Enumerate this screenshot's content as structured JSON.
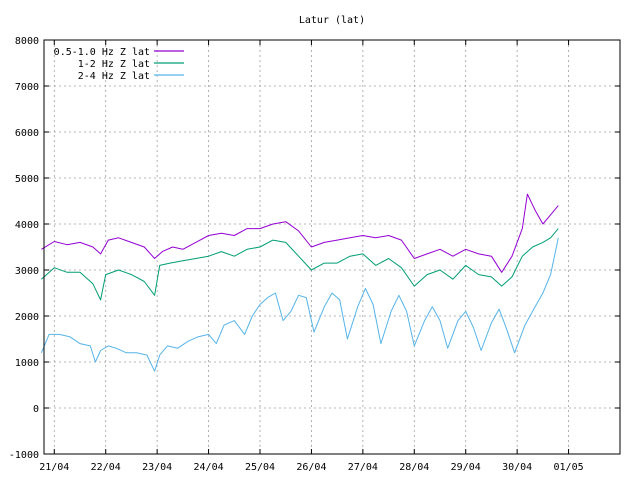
{
  "chart_data": {
    "type": "line",
    "title": "Latur (lat)",
    "xlabel": "",
    "ylabel": "",
    "ylim": [
      -1000,
      8000
    ],
    "xlim": [
      -0.2,
      11.0
    ],
    "yticks": [
      -1000,
      0,
      1000,
      2000,
      3000,
      4000,
      5000,
      6000,
      7000,
      8000
    ],
    "xticks": [
      {
        "pos": 0,
        "label": "21/04"
      },
      {
        "pos": 1,
        "label": "22/04"
      },
      {
        "pos": 2,
        "label": "23/04"
      },
      {
        "pos": 3,
        "label": "24/04"
      },
      {
        "pos": 4,
        "label": "25/04"
      },
      {
        "pos": 5,
        "label": "26/04"
      },
      {
        "pos": 6,
        "label": "27/04"
      },
      {
        "pos": 7,
        "label": "28/04"
      },
      {
        "pos": 8,
        "label": "29/04"
      },
      {
        "pos": 9,
        "label": "30/04"
      },
      {
        "pos": 10,
        "label": "01/05"
      }
    ],
    "grid": true,
    "legend_position": "top-left",
    "series": [
      {
        "name": "0.5-1.0 Hz Z lat",
        "color": "#9400d3",
        "points": [
          [
            -0.25,
            3450
          ],
          [
            0.0,
            3620
          ],
          [
            0.25,
            3550
          ],
          [
            0.5,
            3600
          ],
          [
            0.75,
            3500
          ],
          [
            0.9,
            3350
          ],
          [
            1.05,
            3650
          ],
          [
            1.25,
            3700
          ],
          [
            1.5,
            3600
          ],
          [
            1.75,
            3500
          ],
          [
            1.95,
            3250
          ],
          [
            2.1,
            3400
          ],
          [
            2.3,
            3500
          ],
          [
            2.5,
            3450
          ],
          [
            2.75,
            3600
          ],
          [
            3.0,
            3750
          ],
          [
            3.25,
            3800
          ],
          [
            3.5,
            3750
          ],
          [
            3.75,
            3900
          ],
          [
            4.0,
            3900
          ],
          [
            4.25,
            4000
          ],
          [
            4.5,
            4050
          ],
          [
            4.75,
            3850
          ],
          [
            5.0,
            3500
          ],
          [
            5.25,
            3600
          ],
          [
            5.5,
            3650
          ],
          [
            5.75,
            3700
          ],
          [
            6.0,
            3750
          ],
          [
            6.25,
            3700
          ],
          [
            6.5,
            3750
          ],
          [
            6.75,
            3650
          ],
          [
            7.0,
            3250
          ],
          [
            7.25,
            3350
          ],
          [
            7.5,
            3450
          ],
          [
            7.75,
            3300
          ],
          [
            8.0,
            3450
          ],
          [
            8.25,
            3350
          ],
          [
            8.5,
            3300
          ],
          [
            8.7,
            2950
          ],
          [
            8.9,
            3300
          ],
          [
            9.1,
            3900
          ],
          [
            9.2,
            4650
          ],
          [
            9.35,
            4300
          ],
          [
            9.5,
            4000
          ],
          [
            9.65,
            4200
          ],
          [
            9.8,
            4400
          ]
        ]
      },
      {
        "name": "1-2 Hz Z lat",
        "color": "#009e73",
        "points": [
          [
            -0.25,
            2800
          ],
          [
            0.0,
            3050
          ],
          [
            0.25,
            2950
          ],
          [
            0.5,
            2950
          ],
          [
            0.75,
            2700
          ],
          [
            0.9,
            2350
          ],
          [
            1.0,
            2900
          ],
          [
            1.25,
            3000
          ],
          [
            1.5,
            2900
          ],
          [
            1.75,
            2750
          ],
          [
            1.95,
            2450
          ],
          [
            2.05,
            3100
          ],
          [
            2.25,
            3150
          ],
          [
            2.5,
            3200
          ],
          [
            2.75,
            3250
          ],
          [
            3.0,
            3300
          ],
          [
            3.25,
            3400
          ],
          [
            3.5,
            3300
          ],
          [
            3.75,
            3450
          ],
          [
            4.0,
            3500
          ],
          [
            4.25,
            3650
          ],
          [
            4.5,
            3600
          ],
          [
            4.75,
            3300
          ],
          [
            5.0,
            3000
          ],
          [
            5.25,
            3150
          ],
          [
            5.5,
            3150
          ],
          [
            5.75,
            3300
          ],
          [
            6.0,
            3350
          ],
          [
            6.25,
            3100
          ],
          [
            6.5,
            3250
          ],
          [
            6.75,
            3050
          ],
          [
            7.0,
            2650
          ],
          [
            7.25,
            2900
          ],
          [
            7.5,
            3000
          ],
          [
            7.75,
            2800
          ],
          [
            8.0,
            3100
          ],
          [
            8.25,
            2900
          ],
          [
            8.5,
            2850
          ],
          [
            8.7,
            2650
          ],
          [
            8.9,
            2850
          ],
          [
            9.1,
            3300
          ],
          [
            9.3,
            3500
          ],
          [
            9.5,
            3600
          ],
          [
            9.65,
            3700
          ],
          [
            9.8,
            3900
          ]
        ]
      },
      {
        "name": "2-4 Hz Z lat",
        "color": "#56b4e9",
        "points": [
          [
            -0.25,
            1200
          ],
          [
            -0.1,
            1600
          ],
          [
            0.1,
            1600
          ],
          [
            0.3,
            1550
          ],
          [
            0.5,
            1400
          ],
          [
            0.7,
            1350
          ],
          [
            0.8,
            1000
          ],
          [
            0.9,
            1250
          ],
          [
            1.05,
            1350
          ],
          [
            1.2,
            1300
          ],
          [
            1.4,
            1200
          ],
          [
            1.6,
            1200
          ],
          [
            1.8,
            1150
          ],
          [
            1.95,
            800
          ],
          [
            2.05,
            1150
          ],
          [
            2.2,
            1350
          ],
          [
            2.4,
            1300
          ],
          [
            2.6,
            1450
          ],
          [
            2.8,
            1550
          ],
          [
            3.0,
            1600
          ],
          [
            3.15,
            1400
          ],
          [
            3.3,
            1800
          ],
          [
            3.5,
            1900
          ],
          [
            3.7,
            1600
          ],
          [
            3.85,
            2000
          ],
          [
            4.0,
            2250
          ],
          [
            4.15,
            2400
          ],
          [
            4.3,
            2500
          ],
          [
            4.45,
            1900
          ],
          [
            4.6,
            2100
          ],
          [
            4.75,
            2450
          ],
          [
            4.9,
            2400
          ],
          [
            5.05,
            1650
          ],
          [
            5.25,
            2200
          ],
          [
            5.4,
            2500
          ],
          [
            5.55,
            2350
          ],
          [
            5.7,
            1500
          ],
          [
            5.9,
            2200
          ],
          [
            6.05,
            2600
          ],
          [
            6.2,
            2250
          ],
          [
            6.35,
            1400
          ],
          [
            6.55,
            2100
          ],
          [
            6.7,
            2450
          ],
          [
            6.85,
            2100
          ],
          [
            7.0,
            1350
          ],
          [
            7.2,
            1900
          ],
          [
            7.35,
            2200
          ],
          [
            7.5,
            1900
          ],
          [
            7.65,
            1300
          ],
          [
            7.85,
            1900
          ],
          [
            8.0,
            2100
          ],
          [
            8.15,
            1750
          ],
          [
            8.3,
            1250
          ],
          [
            8.5,
            1850
          ],
          [
            8.65,
            2150
          ],
          [
            8.8,
            1700
          ],
          [
            8.95,
            1200
          ],
          [
            9.15,
            1800
          ],
          [
            9.35,
            2200
          ],
          [
            9.5,
            2500
          ],
          [
            9.65,
            2900
          ],
          [
            9.8,
            3700
          ]
        ]
      }
    ]
  }
}
